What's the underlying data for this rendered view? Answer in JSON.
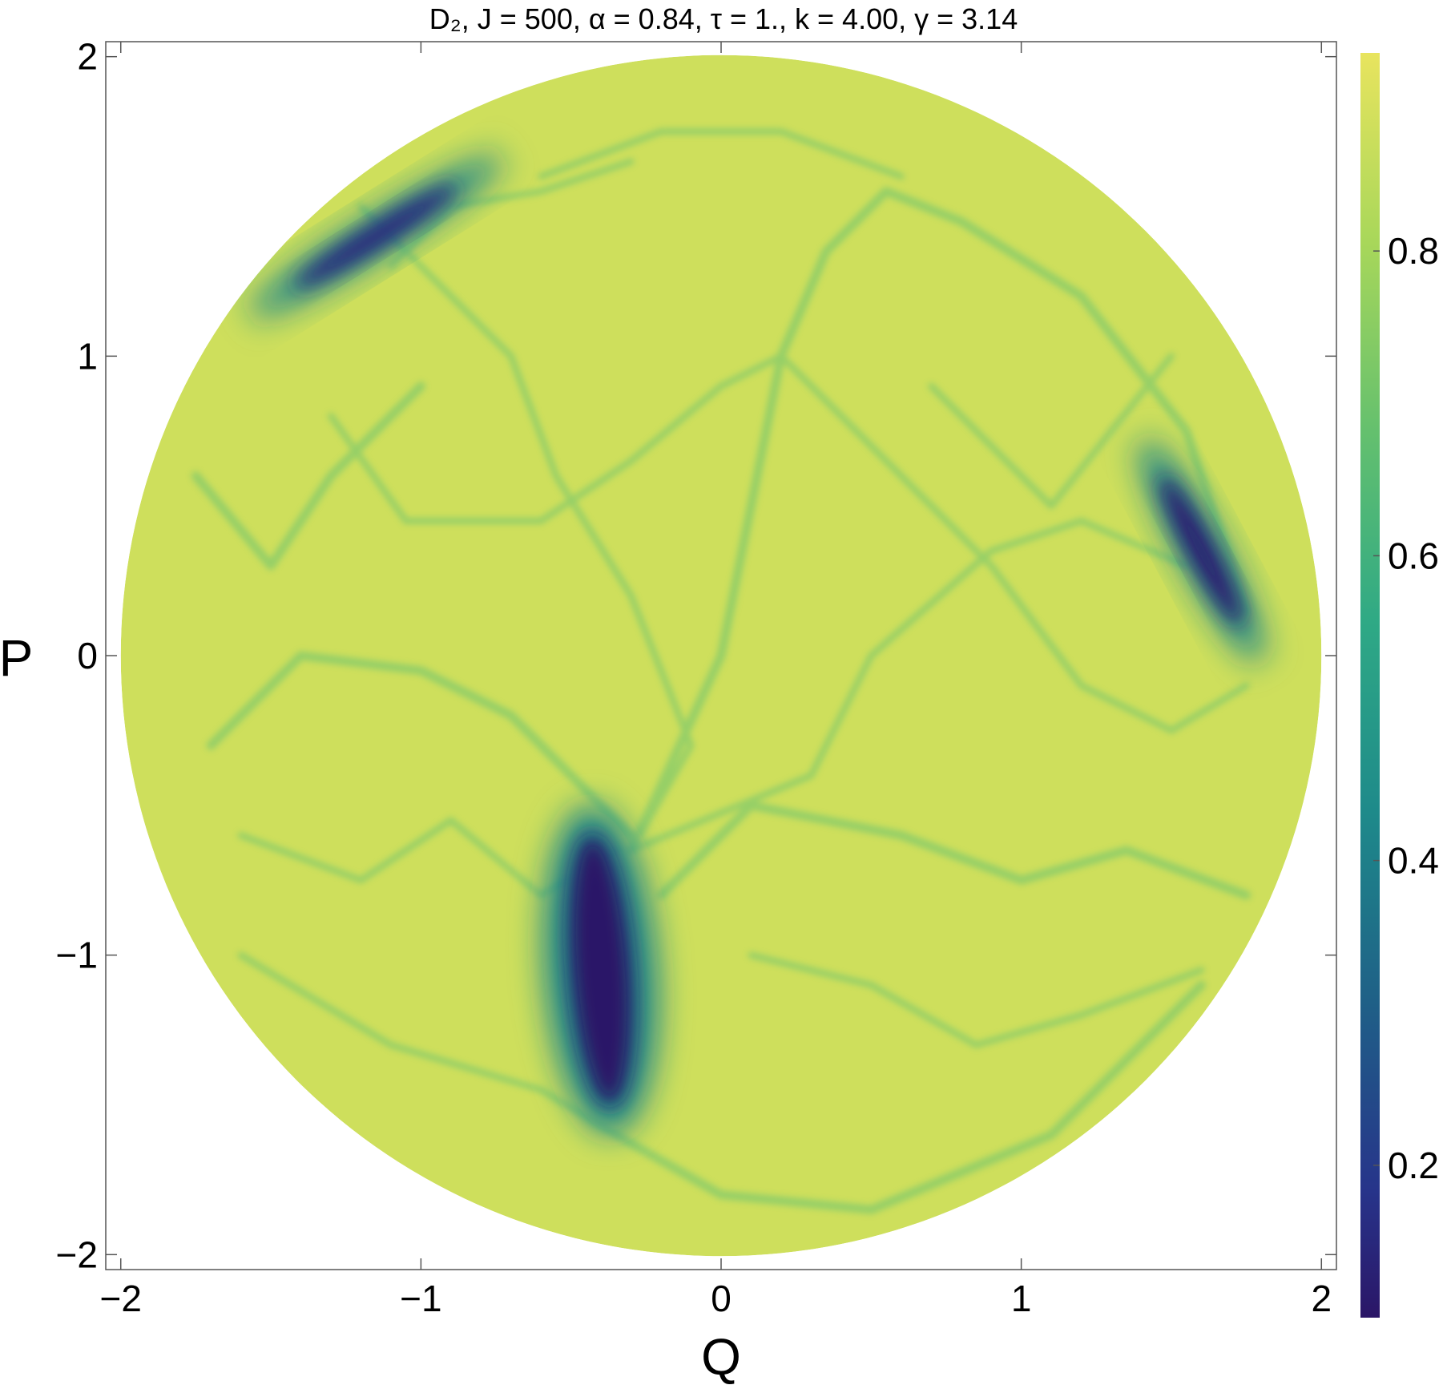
{
  "chart_data": {
    "type": "heatmap",
    "title": "D₂, J = 500, α = 0.84, τ = 1., k = 4.00, γ = 3.14",
    "xlabel": "Q",
    "ylabel": "P",
    "xlim": [
      -2.05,
      2.05
    ],
    "ylim": [
      -2.05,
      2.05
    ],
    "x_ticks": [
      -2,
      -1,
      0,
      1,
      2
    ],
    "x_tick_labels": [
      "−2",
      "−1",
      "0",
      "1",
      "2"
    ],
    "y_ticks": [
      -2,
      -1,
      0,
      1,
      2
    ],
    "y_tick_labels": [
      "−2",
      "−1",
      "0",
      "1",
      "2"
    ],
    "domain": "disk of radius 2 centred at (0, 0)",
    "colormap": "viridis",
    "colorbar": {
      "range": [
        0.1,
        0.93
      ],
      "ticks": [
        0.2,
        0.4,
        0.6,
        0.8
      ],
      "tick_labels": [
        "0.2",
        "0.4",
        "0.6",
        "0.8"
      ]
    },
    "background_value": 0.88,
    "minima": [
      {
        "Q": -0.4,
        "P": -1.05,
        "value": 0.1
      },
      {
        "Q": 1.6,
        "P": 0.35,
        "value": 0.12
      },
      {
        "Q": -1.15,
        "P": 1.4,
        "value": 0.15
      }
    ],
    "grid": false,
    "legend": "colorbar right"
  }
}
